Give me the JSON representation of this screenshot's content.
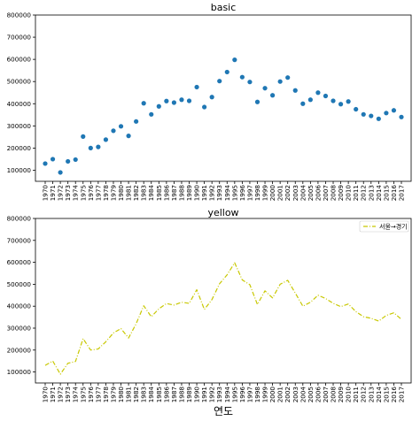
{
  "chart_data": [
    {
      "type": "scatter",
      "title": "basic",
      "xlabel": "",
      "ylabel": "",
      "ylim": [
        50000,
        800000
      ],
      "yticks": [
        "100000",
        "200000",
        "300000",
        "400000",
        "500000",
        "600000",
        "700000",
        "800000"
      ],
      "grid": false,
      "marker_color": "#1f77b4",
      "categories": [
        "1970",
        "1971",
        "1972",
        "1973",
        "1974",
        "1975",
        "1976",
        "1977",
        "1978",
        "1979",
        "1980",
        "1981",
        "1982",
        "1983",
        "1984",
        "1985",
        "1986",
        "1987",
        "1988",
        "1989",
        "1990",
        "1991",
        "1992",
        "1993",
        "1994",
        "1995",
        "1996",
        "1997",
        "1998",
        "1999",
        "2000",
        "2001",
        "2002",
        "2003",
        "2004",
        "2005",
        "2006",
        "2007",
        "2008",
        "2009",
        "2010",
        "2011",
        "2012",
        "2013",
        "2014",
        "2015",
        "2016",
        "2017"
      ],
      "series": [
        {
          "name": "",
          "values": [
            130000,
            150000,
            90000,
            140000,
            148000,
            252000,
            200000,
            205000,
            238000,
            278000,
            298000,
            255000,
            320000,
            402000,
            352000,
            388000,
            412000,
            405000,
            418000,
            413000,
            475000,
            385000,
            430000,
            502000,
            543000,
            598000,
            520000,
            498000,
            408000,
            470000,
            438000,
            500000,
            518000,
            460000,
            400000,
            418000,
            450000,
            435000,
            413000,
            398000,
            410000,
            375000,
            352000,
            345000,
            332000,
            358000,
            370000,
            340000
          ]
        }
      ]
    },
    {
      "type": "line",
      "title": "yellow",
      "xlabel": "연도",
      "ylabel": "",
      "ylim": [
        50000,
        800000
      ],
      "yticks": [
        "100000",
        "200000",
        "300000",
        "400000",
        "500000",
        "600000",
        "700000",
        "800000"
      ],
      "grid": false,
      "legend": "top-right",
      "line_color": "#c8c800",
      "line_style": "dash-dot",
      "categories": [
        "1970",
        "1971",
        "1972",
        "1973",
        "1974",
        "1975",
        "1976",
        "1977",
        "1978",
        "1979",
        "1980",
        "1981",
        "1982",
        "1983",
        "1984",
        "1985",
        "1986",
        "1987",
        "1988",
        "1989",
        "1990",
        "1991",
        "1992",
        "1993",
        "1994",
        "1995",
        "1996",
        "1997",
        "1998",
        "1999",
        "2000",
        "2001",
        "2002",
        "2003",
        "2004",
        "2005",
        "2006",
        "2007",
        "2008",
        "2009",
        "2010",
        "2011",
        "2012",
        "2013",
        "2014",
        "2015",
        "2016",
        "2017"
      ],
      "series": [
        {
          "name": "서울→경기",
          "values": [
            130000,
            150000,
            90000,
            140000,
            148000,
            252000,
            200000,
            205000,
            238000,
            278000,
            298000,
            255000,
            320000,
            402000,
            352000,
            388000,
            412000,
            405000,
            418000,
            413000,
            475000,
            385000,
            430000,
            502000,
            543000,
            598000,
            520000,
            498000,
            408000,
            470000,
            438000,
            500000,
            518000,
            460000,
            400000,
            418000,
            450000,
            435000,
            413000,
            398000,
            410000,
            375000,
            352000,
            345000,
            332000,
            358000,
            370000,
            340000
          ]
        }
      ]
    }
  ]
}
